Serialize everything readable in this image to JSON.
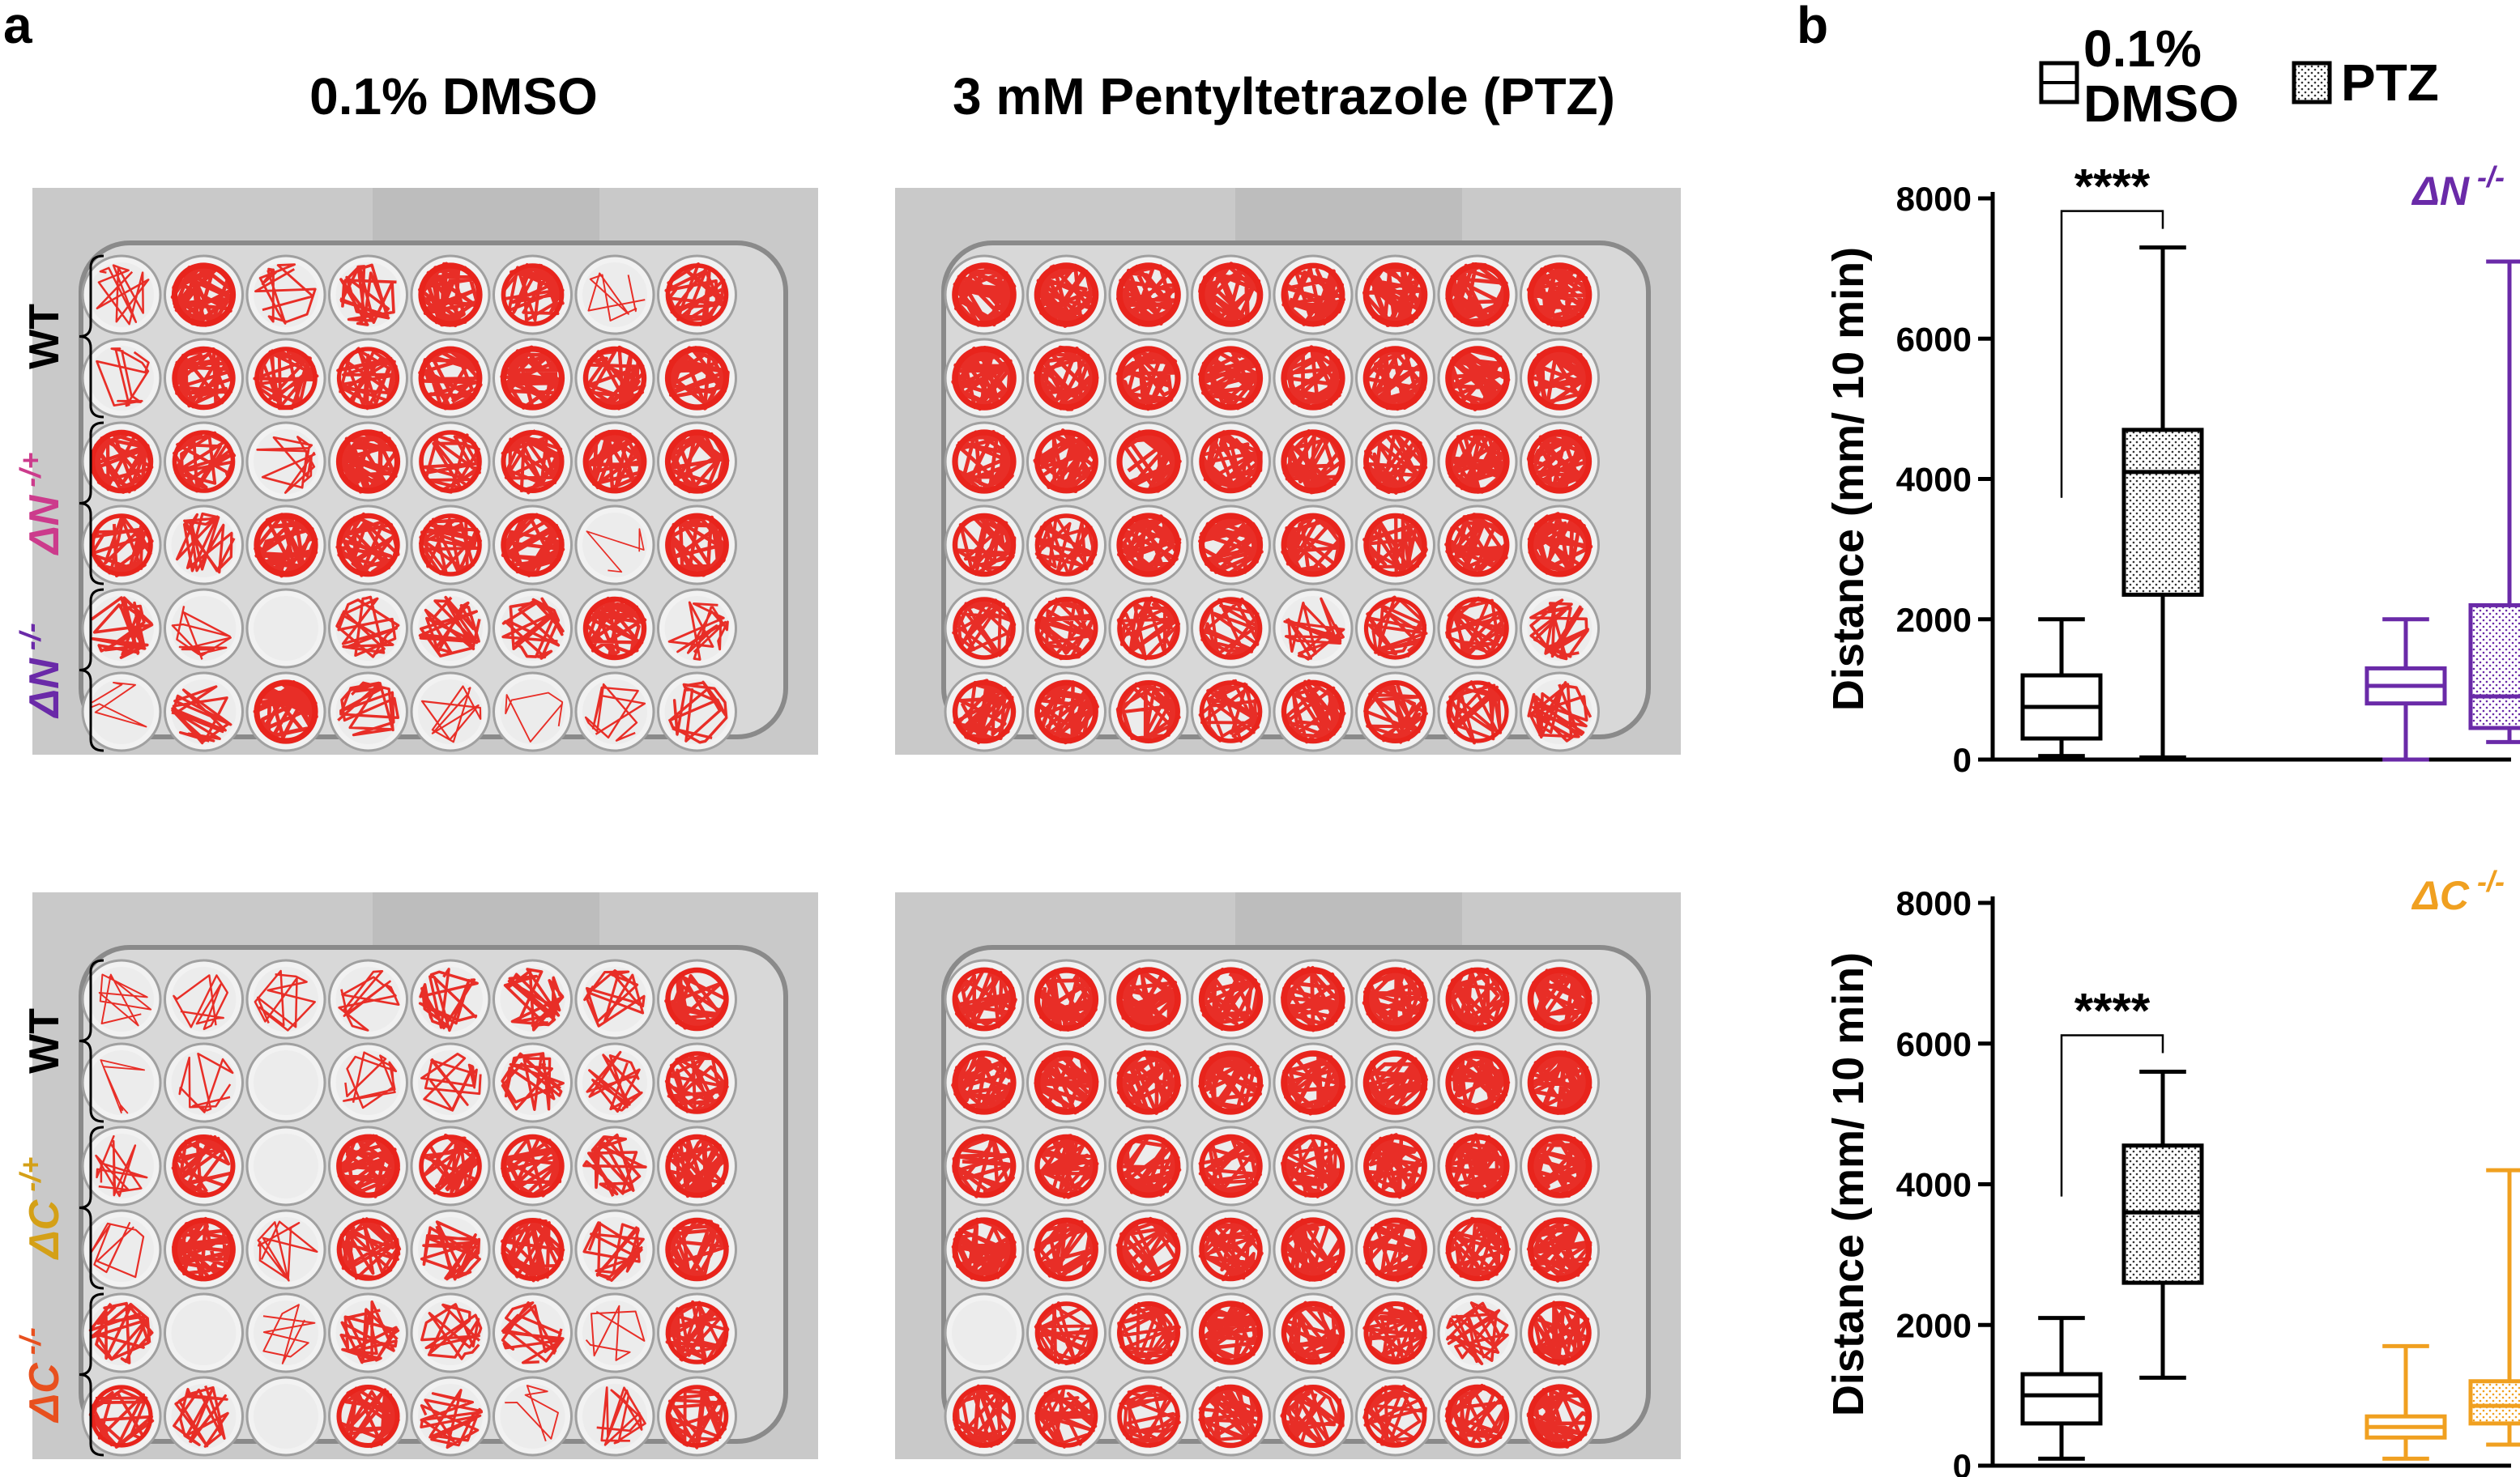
{
  "panel_a": {
    "letter": "a",
    "columns": [
      "0.1% DMSO",
      "3 mM Pentyltetrazole (PTZ)"
    ],
    "plates_top": {
      "row_groups": [
        {
          "label": "WT",
          "sup": "",
          "color": "#000000"
        },
        {
          "label": "ΔN",
          "sup": "-/+",
          "color": "#cc3b8c"
        },
        {
          "label": "ΔN",
          "sup": "-/-",
          "color": "#6a2aa8"
        }
      ]
    },
    "plates_bottom": {
      "row_groups": [
        {
          "label": "WT",
          "sup": "",
          "color": "#000000"
        },
        {
          "label": "ΔC",
          "sup": "-/+",
          "color": "#d4a017"
        },
        {
          "label": "ΔC",
          "sup": "-/-",
          "color": "#e8501e"
        }
      ]
    },
    "plates": [
      {
        "density": [
          [
            0.3,
            0.9,
            0.4,
            0.6,
            0.9,
            0.7,
            0.15,
            0.7
          ],
          [
            0.35,
            0.8,
            0.7,
            0.65,
            0.85,
            0.9,
            0.8,
            0.9
          ],
          [
            0.8,
            0.7,
            0.35,
            0.9,
            0.7,
            0.75,
            0.85,
            0.9
          ],
          [
            0.7,
            0.5,
            0.9,
            0.8,
            0.7,
            0.8,
            0.05,
            0.85
          ],
          [
            0.6,
            0.25,
            0.0,
            0.5,
            0.6,
            0.6,
            0.8,
            0.4
          ],
          [
            0.1,
            0.5,
            0.9,
            0.5,
            0.2,
            0.1,
            0.25,
            0.55
          ]
        ]
      },
      {
        "density": [
          [
            0.95,
            0.95,
            0.95,
            0.95,
            0.85,
            0.95,
            0.9,
            0.95
          ],
          [
            0.95,
            0.95,
            0.9,
            0.9,
            0.9,
            0.95,
            0.95,
            0.95
          ],
          [
            0.9,
            0.85,
            0.9,
            0.8,
            0.9,
            0.85,
            0.9,
            0.9
          ],
          [
            0.8,
            0.7,
            0.9,
            0.9,
            0.85,
            0.8,
            0.85,
            0.9
          ],
          [
            0.7,
            0.75,
            0.7,
            0.7,
            0.5,
            0.65,
            0.7,
            0.6
          ],
          [
            0.8,
            0.85,
            0.75,
            0.7,
            0.8,
            0.75,
            0.65,
            0.6
          ]
        ]
      },
      {
        "density": [
          [
            0.15,
            0.25,
            0.3,
            0.35,
            0.55,
            0.6,
            0.45,
            0.8
          ],
          [
            0.08,
            0.3,
            0.0,
            0.3,
            0.4,
            0.55,
            0.45,
            0.7
          ],
          [
            0.3,
            0.75,
            0.0,
            0.85,
            0.7,
            0.8,
            0.6,
            0.8
          ],
          [
            0.2,
            0.85,
            0.25,
            0.7,
            0.6,
            0.75,
            0.5,
            0.8
          ],
          [
            0.6,
            0.0,
            0.15,
            0.6,
            0.5,
            0.5,
            0.15,
            0.7
          ],
          [
            0.65,
            0.5,
            0.0,
            0.75,
            0.5,
            0.1,
            0.35,
            0.7
          ]
        ]
      },
      {
        "density": [
          [
            0.85,
            0.9,
            0.95,
            0.9,
            0.95,
            0.9,
            0.85,
            0.95
          ],
          [
            0.9,
            0.95,
            0.9,
            0.9,
            0.95,
            0.95,
            0.9,
            0.95
          ],
          [
            0.85,
            0.8,
            0.85,
            0.8,
            0.75,
            0.85,
            0.9,
            0.95
          ],
          [
            0.9,
            0.85,
            0.85,
            0.8,
            0.9,
            0.85,
            0.8,
            0.9
          ],
          [
            0.0,
            0.7,
            0.75,
            0.9,
            0.8,
            0.75,
            0.6,
            0.8
          ],
          [
            0.75,
            0.7,
            0.7,
            0.8,
            0.75,
            0.7,
            0.8,
            0.9
          ]
        ]
      }
    ]
  },
  "panel_b": {
    "letter": "b",
    "legend": [
      {
        "label": "0.1%\nDMSO",
        "fill": "open"
      },
      {
        "label": "PTZ",
        "fill": "dotted"
      }
    ]
  },
  "chart_data": [
    {
      "type": "box",
      "genotype_label": "ΔN",
      "genotype_sup": "-/-",
      "genotype_color": "#6a2aa8",
      "ylabel": "Distance (mm/ 10 min)",
      "ylim": [
        0,
        8000
      ],
      "yticks": [
        0,
        2000,
        4000,
        6000,
        8000
      ],
      "significance": "****",
      "series": [
        {
          "group": "WT",
          "treatment": "0.1% DMSO",
          "color": "#000000",
          "min": 50,
          "q1": 300,
          "median": 750,
          "q3": 1200,
          "max": 2000
        },
        {
          "group": "WT",
          "treatment": "PTZ",
          "color": "#000000",
          "min": 30,
          "q1": 2350,
          "median": 4100,
          "q3": 4700,
          "max": 7300
        },
        {
          "group": "ΔN-/-",
          "treatment": "0.1% DMSO",
          "color": "#6a2aa8",
          "min": 0,
          "q1": 800,
          "median": 1050,
          "q3": 1300,
          "max": 2000
        },
        {
          "group": "ΔN-/-",
          "treatment": "PTZ",
          "color": "#6a2aa8",
          "min": 250,
          "q1": 450,
          "median": 900,
          "q3": 2200,
          "max": 7100
        }
      ]
    },
    {
      "type": "box",
      "genotype_label": "ΔC",
      "genotype_sup": "-/-",
      "genotype_color": "#f0a020",
      "ylabel": "Distance (mm/ 10 min)",
      "ylim": [
        0,
        8000
      ],
      "yticks": [
        0,
        2000,
        4000,
        6000,
        8000
      ],
      "significance": "****",
      "series": [
        {
          "group": "WT",
          "treatment": "0.1% DMSO",
          "color": "#000000",
          "min": 100,
          "q1": 600,
          "median": 1000,
          "q3": 1300,
          "max": 2100
        },
        {
          "group": "WT",
          "treatment": "PTZ",
          "color": "#000000",
          "min": 1250,
          "q1": 2600,
          "median": 3600,
          "q3": 4550,
          "max": 5600
        },
        {
          "group": "ΔC-/-",
          "treatment": "0.1% DMSO",
          "color": "#f0a020",
          "min": 100,
          "q1": 400,
          "median": 550,
          "q3": 700,
          "max": 1700
        },
        {
          "group": "ΔC-/-",
          "treatment": "PTZ",
          "color": "#f0a020",
          "min": 300,
          "q1": 600,
          "median": 850,
          "q3": 1200,
          "max": 4200
        }
      ]
    }
  ]
}
